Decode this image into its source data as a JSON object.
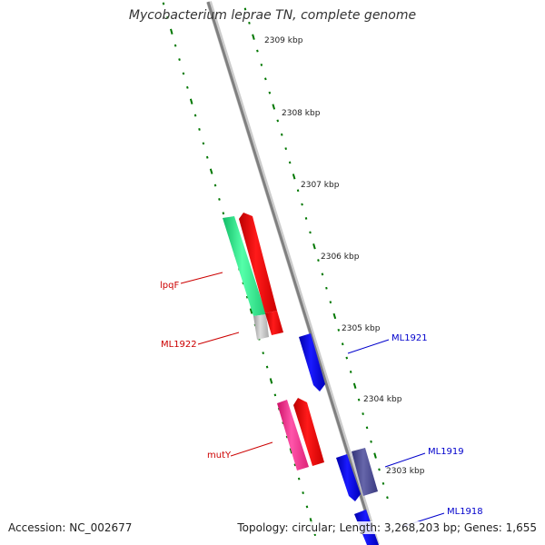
{
  "title": "Mycobacterium leprae TN, complete genome",
  "ruler": [
    {
      "label": "2309 kbp"
    },
    {
      "label": "2308 kbp"
    },
    {
      "label": "2307 kbp"
    },
    {
      "label": "2306 kbp"
    },
    {
      "label": "2305 kbp"
    },
    {
      "label": "2304 kbp"
    },
    {
      "label": "2303 kbp"
    }
  ],
  "genes": [
    {
      "label": "lpqF",
      "strand": "reverse",
      "color": "#cc0000"
    },
    {
      "label": "ML1922",
      "strand": "reverse",
      "color": "#cc0000"
    },
    {
      "label": "ML1921",
      "strand": "forward",
      "color": "#0000cc"
    },
    {
      "label": "mutY",
      "strand": "reverse",
      "color": "#cc0000"
    },
    {
      "label": "ML1919",
      "strand": "forward",
      "color": "#0000cc"
    },
    {
      "label": "ML1918",
      "strand": "forward",
      "color": "#0000cc"
    }
  ],
  "colors": {
    "backbone": "#888888",
    "gc_ticks": "#007700",
    "cds_forward": "#0000ee",
    "cds_reverse": "#ee0000",
    "cog_green": "#22dd88",
    "cog_grey": "#bbbbbb",
    "cog_pink": "#ee2288",
    "cog_purple": "#444488"
  },
  "footer": {
    "accession": "Accession: NC_002677",
    "summary": "Topology: circular; Length: 3,268,203 bp; Genes: 1,655"
  }
}
